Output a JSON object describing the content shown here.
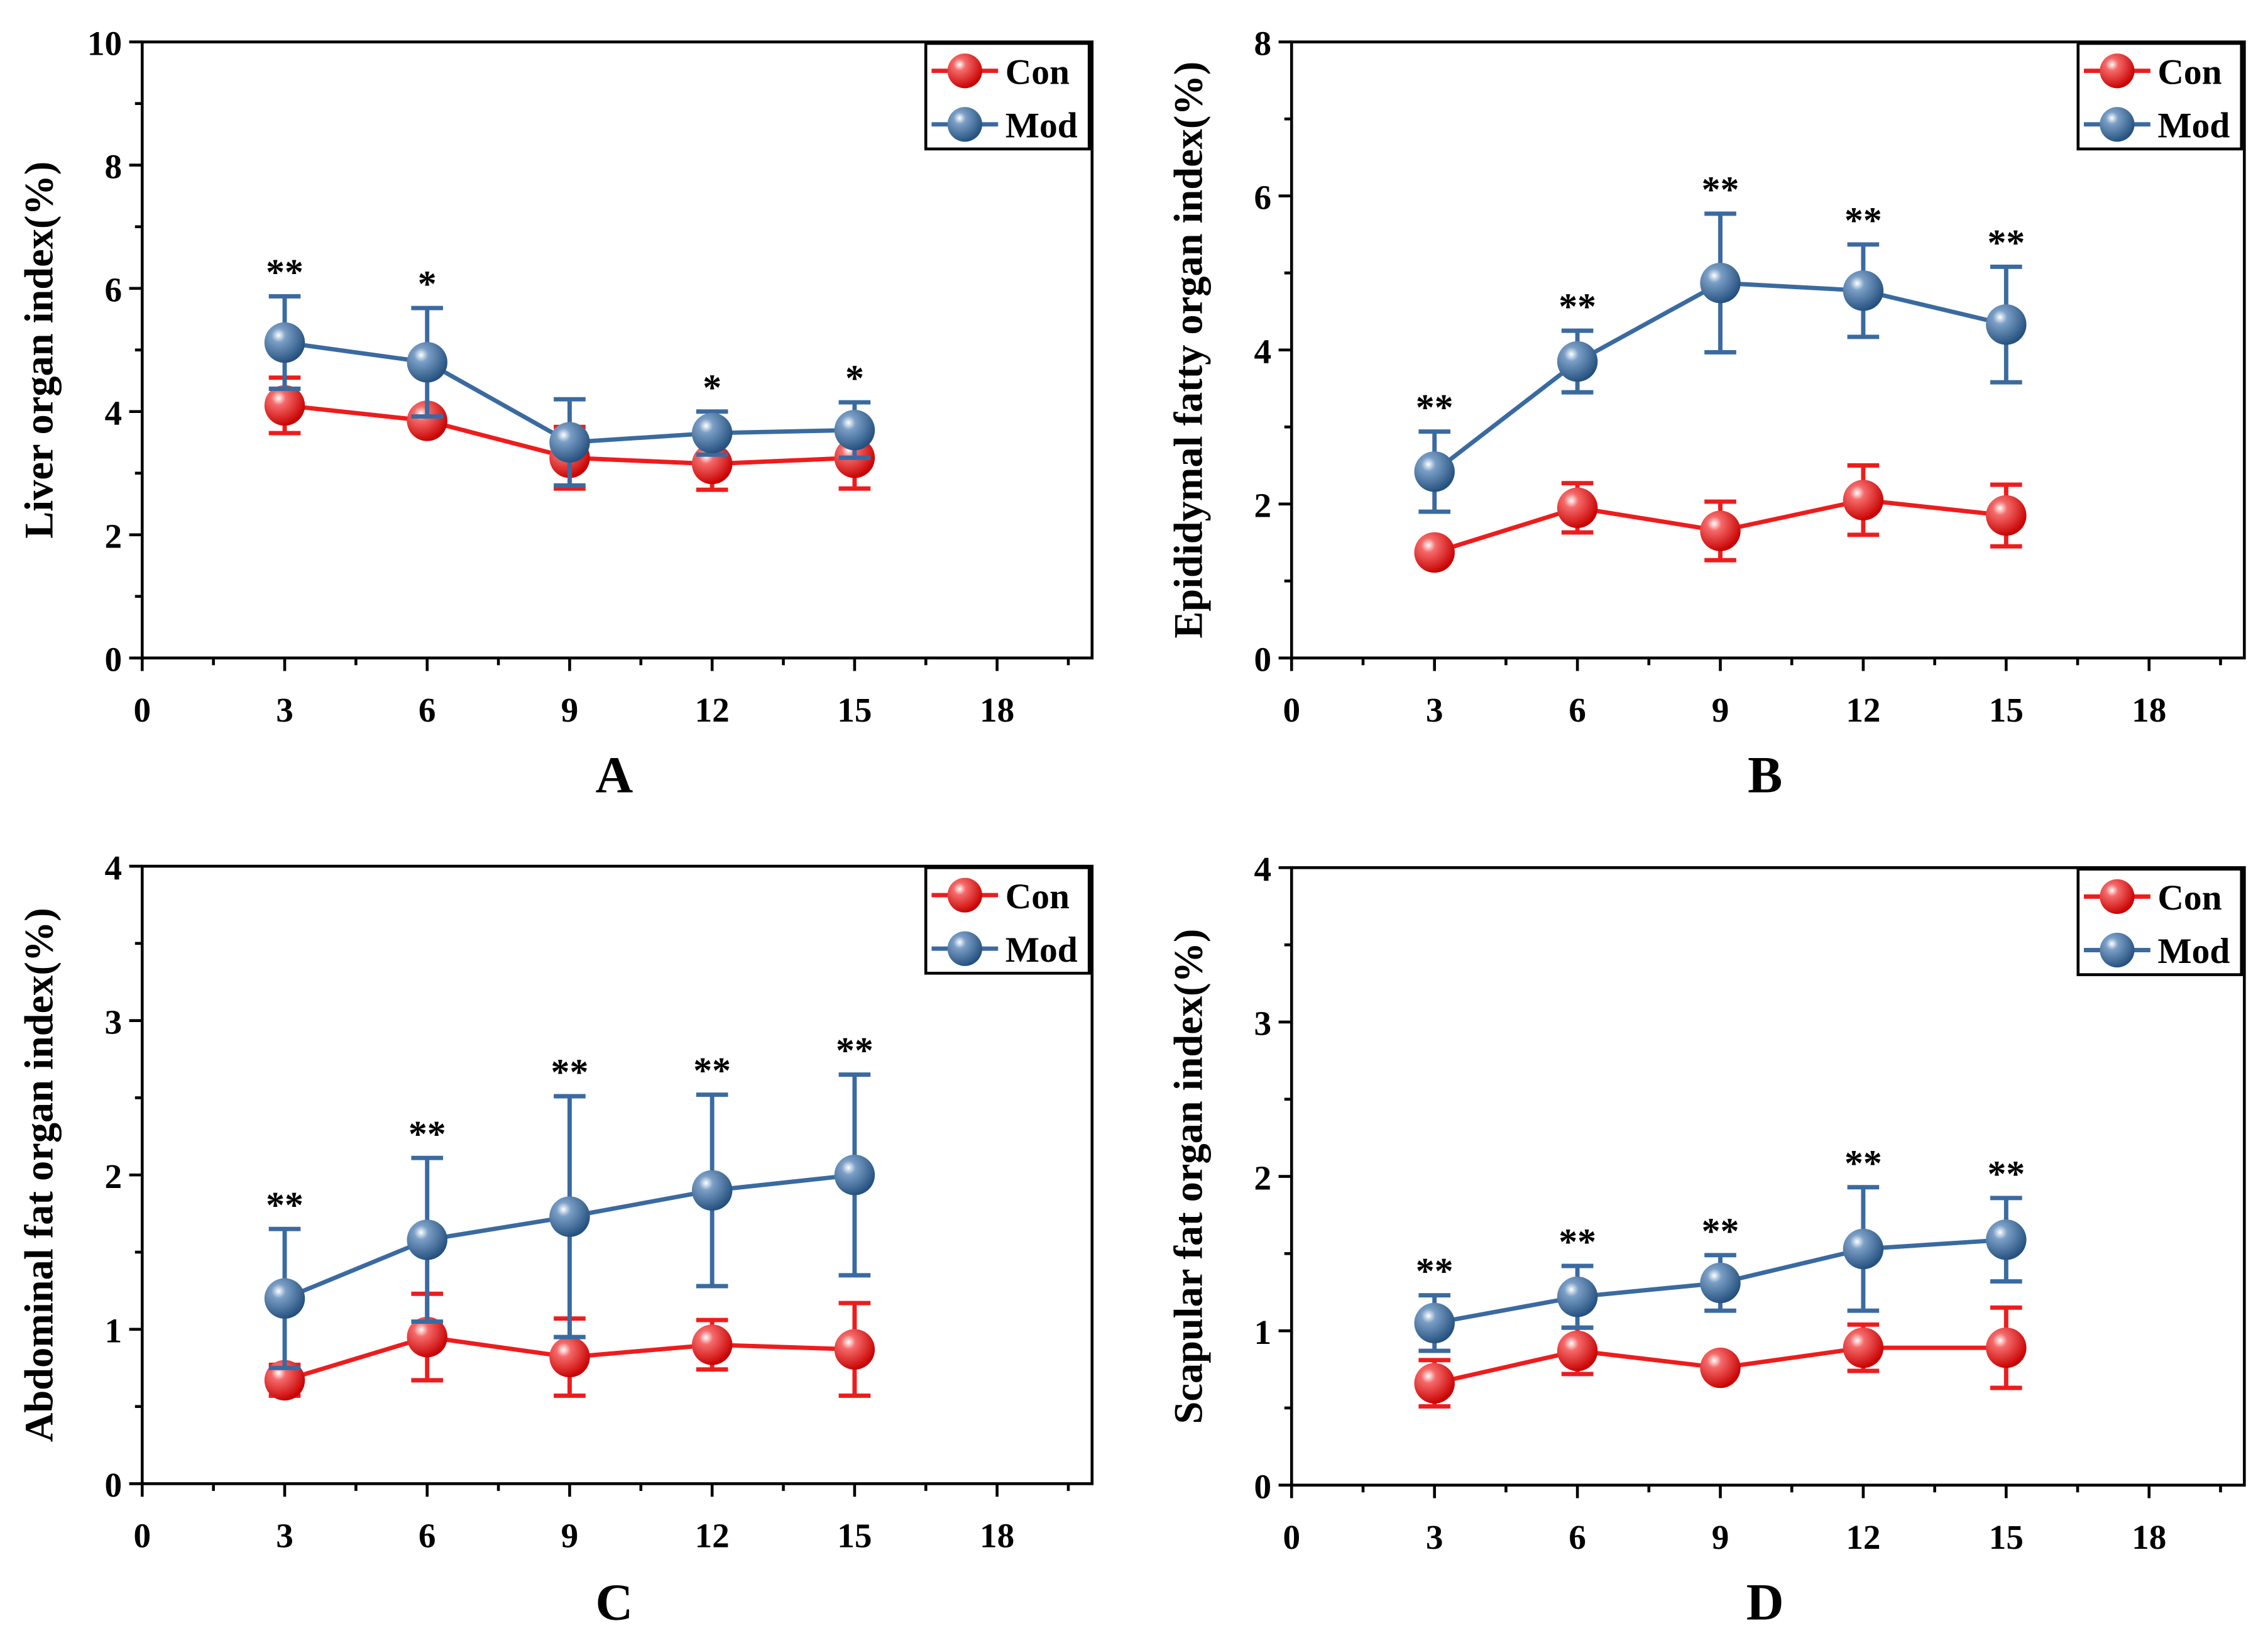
{
  "chart_data": [
    {
      "panel_label": "A",
      "type": "line",
      "xlabel": "",
      "ylabel": "Liver organ index(%)",
      "xlim": [
        0,
        20
      ],
      "ylim": [
        0,
        10
      ],
      "xticks": [
        0,
        3,
        6,
        9,
        12,
        15,
        18
      ],
      "yticks": [
        0,
        2,
        4,
        6,
        8,
        10
      ],
      "x": [
        3,
        6,
        9,
        12,
        15
      ],
      "series": [
        {
          "name": "Con",
          "color": "#ee1c1c",
          "values": [
            4.1,
            3.85,
            3.25,
            3.15,
            3.25
          ],
          "errors": [
            0.45,
            0.0,
            0.5,
            0.42,
            0.5
          ]
        },
        {
          "name": "Mod",
          "color": "#3a6aa0",
          "values": [
            5.12,
            4.8,
            3.5,
            3.65,
            3.7
          ],
          "errors": [
            0.75,
            0.88,
            0.7,
            0.35,
            0.45
          ]
        }
      ],
      "significance": [
        "**",
        "*",
        "",
        "*",
        "*"
      ],
      "legend": "top-right"
    },
    {
      "panel_label": "B",
      "type": "line",
      "xlabel": "",
      "ylabel": "Epididymal fatty organ index(%)",
      "xlim": [
        0,
        20
      ],
      "ylim": [
        0,
        8
      ],
      "xticks": [
        0,
        3,
        6,
        9,
        12,
        15,
        18
      ],
      "yticks": [
        0,
        2,
        4,
        6,
        8
      ],
      "x": [
        3,
        6,
        9,
        12,
        15
      ],
      "series": [
        {
          "name": "Con",
          "color": "#ee1c1c",
          "values": [
            1.37,
            1.95,
            1.65,
            2.05,
            1.85
          ],
          "errors": [
            0.1,
            0.32,
            0.38,
            0.45,
            0.4
          ]
        },
        {
          "name": "Mod",
          "color": "#3a6aa0",
          "values": [
            2.42,
            3.85,
            4.87,
            4.77,
            4.33
          ],
          "errors": [
            0.52,
            0.4,
            0.9,
            0.6,
            0.75
          ]
        }
      ],
      "significance": [
        "**",
        "**",
        "**",
        "**",
        "**"
      ],
      "legend": "top-right"
    },
    {
      "panel_label": "C",
      "type": "line",
      "xlabel": "",
      "ylabel": "Abdominal fat organ index(%)",
      "xlim": [
        0,
        20
      ],
      "ylim": [
        0,
        4
      ],
      "xticks": [
        0,
        3,
        6,
        9,
        12,
        15,
        18
      ],
      "yticks": [
        0,
        1,
        2,
        3,
        4
      ],
      "x": [
        3,
        6,
        9,
        12,
        15
      ],
      "series": [
        {
          "name": "Con",
          "color": "#ee1c1c",
          "values": [
            0.67,
            0.95,
            0.82,
            0.9,
            0.87
          ],
          "errors": [
            0.1,
            0.28,
            0.25,
            0.16,
            0.3
          ]
        },
        {
          "name": "Mod",
          "color": "#3a6aa0",
          "values": [
            1.2,
            1.58,
            1.73,
            1.9,
            2.0
          ],
          "errors": [
            0.45,
            0.53,
            0.78,
            0.62,
            0.65
          ]
        }
      ],
      "significance": [
        "**",
        "**",
        "**",
        "**",
        "**"
      ],
      "legend": "top-right"
    },
    {
      "panel_label": "D",
      "type": "line",
      "xlabel": "",
      "ylabel": "Scapular fat organ index(%)",
      "xlim": [
        0,
        20
      ],
      "ylim": [
        0,
        4
      ],
      "xticks": [
        0,
        3,
        6,
        9,
        12,
        15,
        18
      ],
      "yticks": [
        0,
        1,
        2,
        3,
        4
      ],
      "x": [
        3,
        6,
        9,
        12,
        15
      ],
      "series": [
        {
          "name": "Con",
          "color": "#ee1c1c",
          "values": [
            0.66,
            0.87,
            0.76,
            0.89,
            0.89
          ],
          "errors": [
            0.15,
            0.15,
            0.07,
            0.15,
            0.26
          ]
        },
        {
          "name": "Mod",
          "color": "#3a6aa0",
          "values": [
            1.05,
            1.22,
            1.31,
            1.53,
            1.59
          ],
          "errors": [
            0.18,
            0.2,
            0.18,
            0.4,
            0.27
          ]
        }
      ],
      "significance": [
        "**",
        "**",
        "**",
        "**",
        "**"
      ],
      "legend": "top-right"
    }
  ]
}
